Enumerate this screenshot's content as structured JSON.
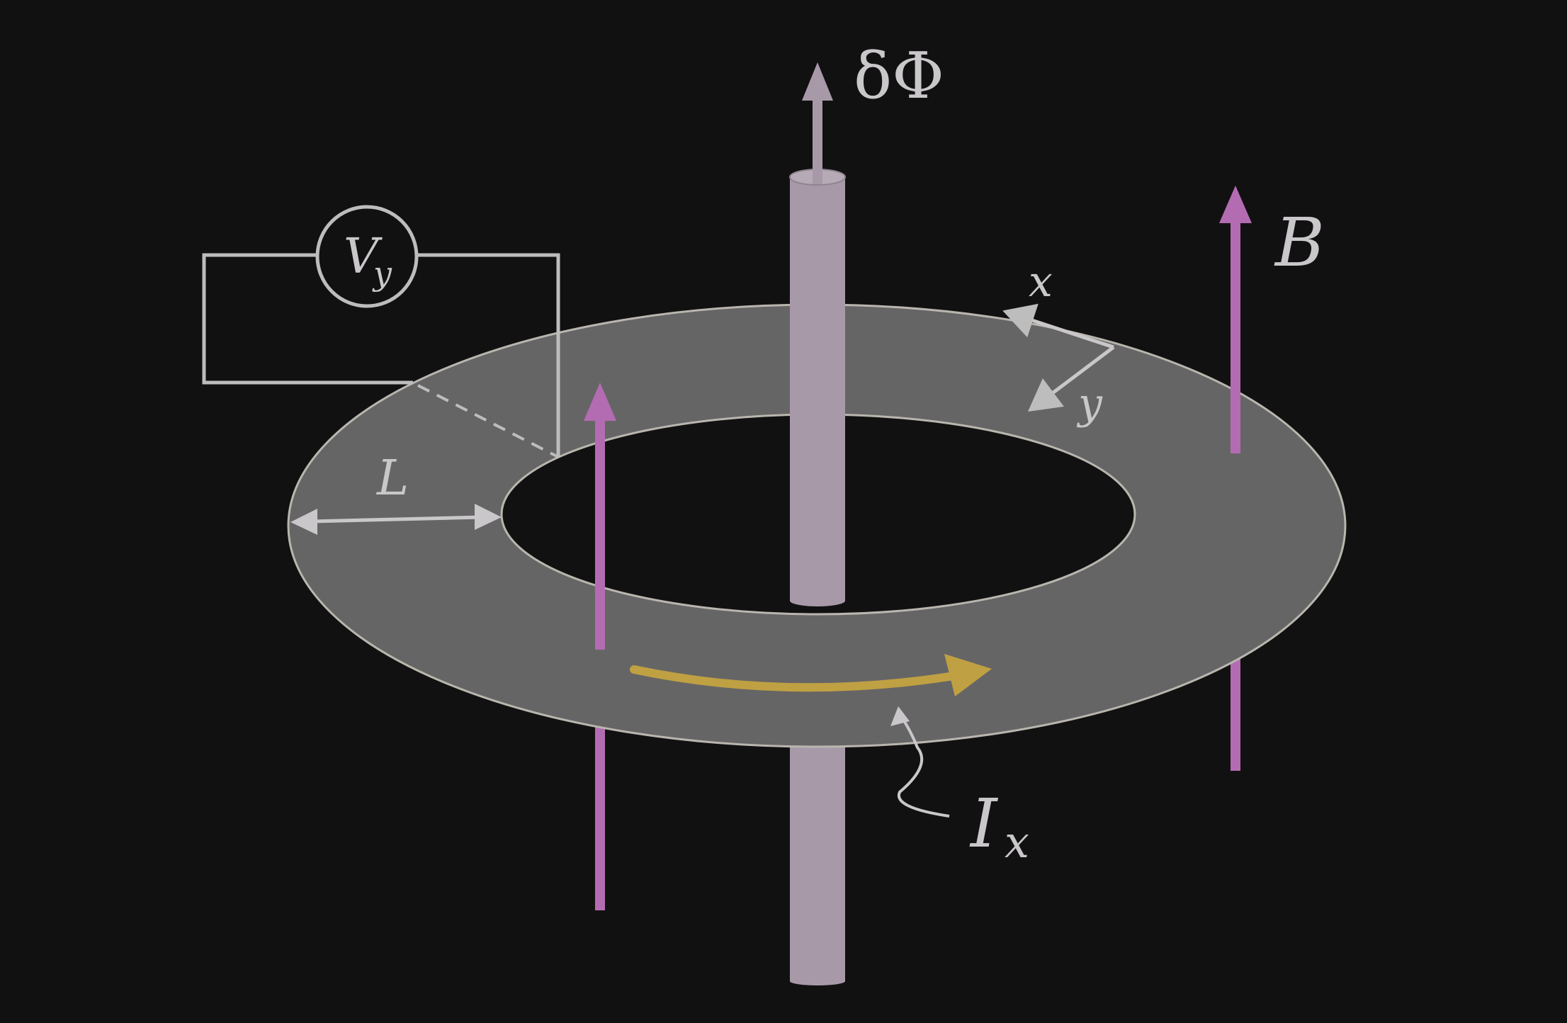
{
  "labels": {
    "flux": "δΦ",
    "field": "B",
    "voltmeter_main": "V",
    "voltmeter_sub": "y",
    "width": "L",
    "axis_x": "x",
    "axis_y": "y",
    "current_main": "I",
    "current_sub": "x"
  },
  "colors": {
    "background": "#121112",
    "annulus_fill": "#666566",
    "annulus_edge": "#b9b6ae",
    "solenoid": "#a899a8",
    "field_arrow": "#b36cb2",
    "current_arrow": "#bfa042",
    "wire": "#bdbdbd",
    "text": "#c9c7c9"
  }
}
